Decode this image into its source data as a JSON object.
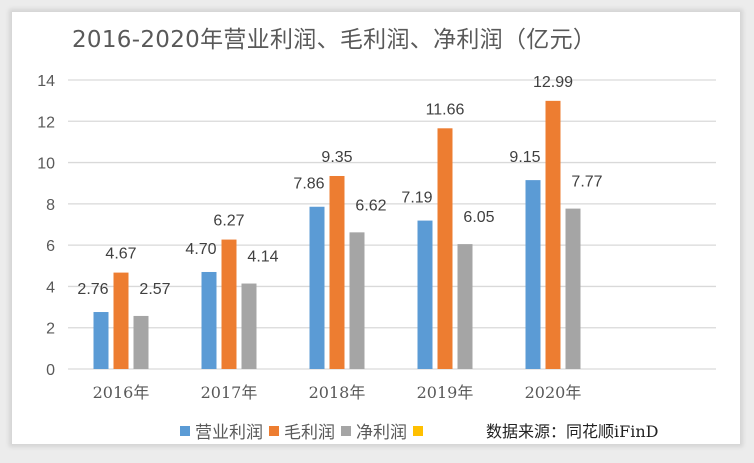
{
  "chart_data": {
    "type": "bar",
    "title": "2016-2020年营业利润、毛利润、净利润（亿元）",
    "xlabel": "",
    "ylabel": "",
    "categories": [
      "2016年",
      "2017年",
      "2018年",
      "2019年",
      "2020年"
    ],
    "series": [
      {
        "name": "营业利润",
        "color": "#5b9bd5",
        "values": [
          2.76,
          4.7,
          7.86,
          7.19,
          9.15
        ],
        "labels": [
          "2.76",
          "4.70",
          "7.86",
          "7.19",
          "9.15"
        ]
      },
      {
        "name": "毛利润",
        "color": "#ed7d31",
        "values": [
          4.67,
          6.27,
          9.35,
          11.66,
          12.99
        ],
        "labels": [
          "4.67",
          "6.27",
          "9.35",
          "11.66",
          "12.99"
        ]
      },
      {
        "name": "净利润",
        "color": "#a5a5a5",
        "values": [
          2.57,
          4.14,
          6.62,
          6.05,
          7.77
        ],
        "labels": [
          "2.57",
          "4.14",
          "6.62",
          "6.05",
          "7.77"
        ]
      },
      {
        "name": "",
        "color": "#ffc000",
        "values": [],
        "labels": []
      }
    ],
    "ylim": [
      0,
      14
    ],
    "yticks": [
      0,
      2,
      4,
      6,
      8,
      10,
      12,
      14
    ],
    "grid": true,
    "legend_position": "bottom",
    "source": "数据来源：同花顺iFinD"
  }
}
